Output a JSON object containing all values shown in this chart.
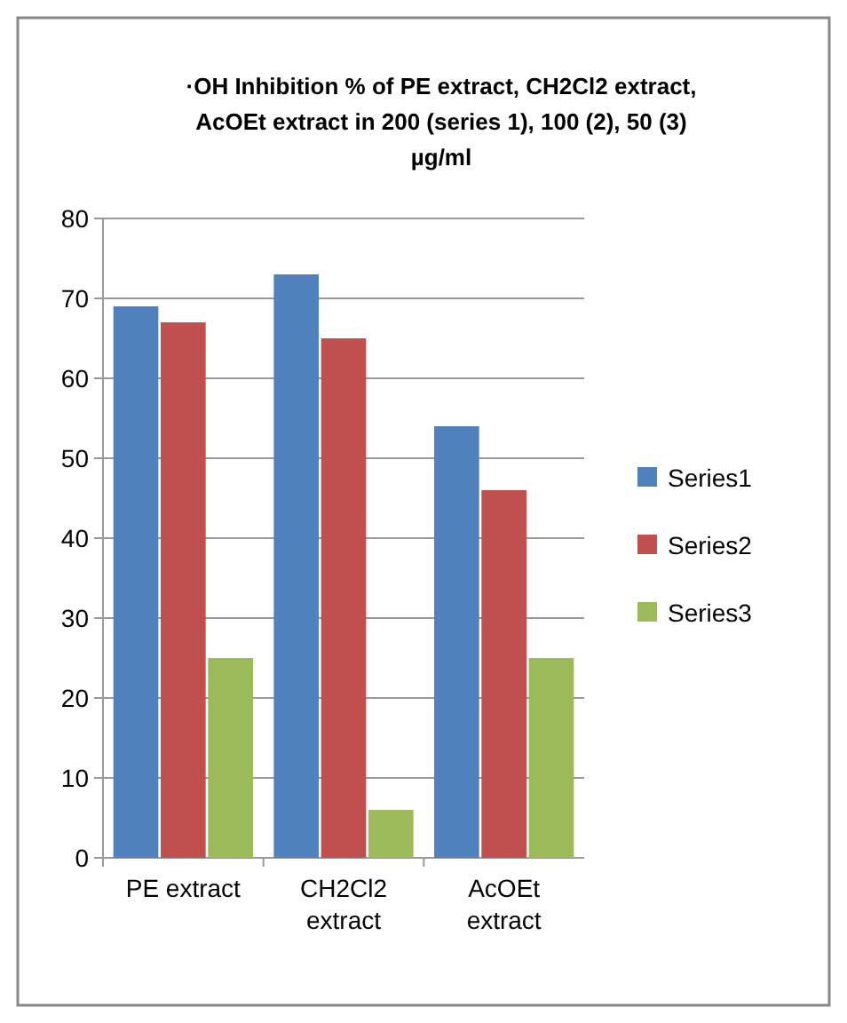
{
  "chart_data": {
    "type": "bar",
    "title": "·OH Inhibition % of PE extract, CH2Cl2 extract, AcOEt extract in 200 (series 1), 100 (2), 50 (3) µg/ml",
    "categories": [
      "PE extract",
      "CH2Cl2 extract",
      "AcOEt extract"
    ],
    "series": [
      {
        "name": "Series1",
        "color": "#4f81bd",
        "values": [
          69,
          73,
          54
        ]
      },
      {
        "name": "Series2",
        "color": "#c0504d",
        "values": [
          67,
          65,
          46
        ]
      },
      {
        "name": "Series3",
        "color": "#9bbb59",
        "values": [
          25,
          6,
          25
        ]
      }
    ],
    "ylim": [
      0,
      80
    ],
    "yticks": [
      0,
      10,
      20,
      30,
      40,
      50,
      60,
      70,
      80
    ],
    "grid": "y",
    "legend": "right"
  }
}
